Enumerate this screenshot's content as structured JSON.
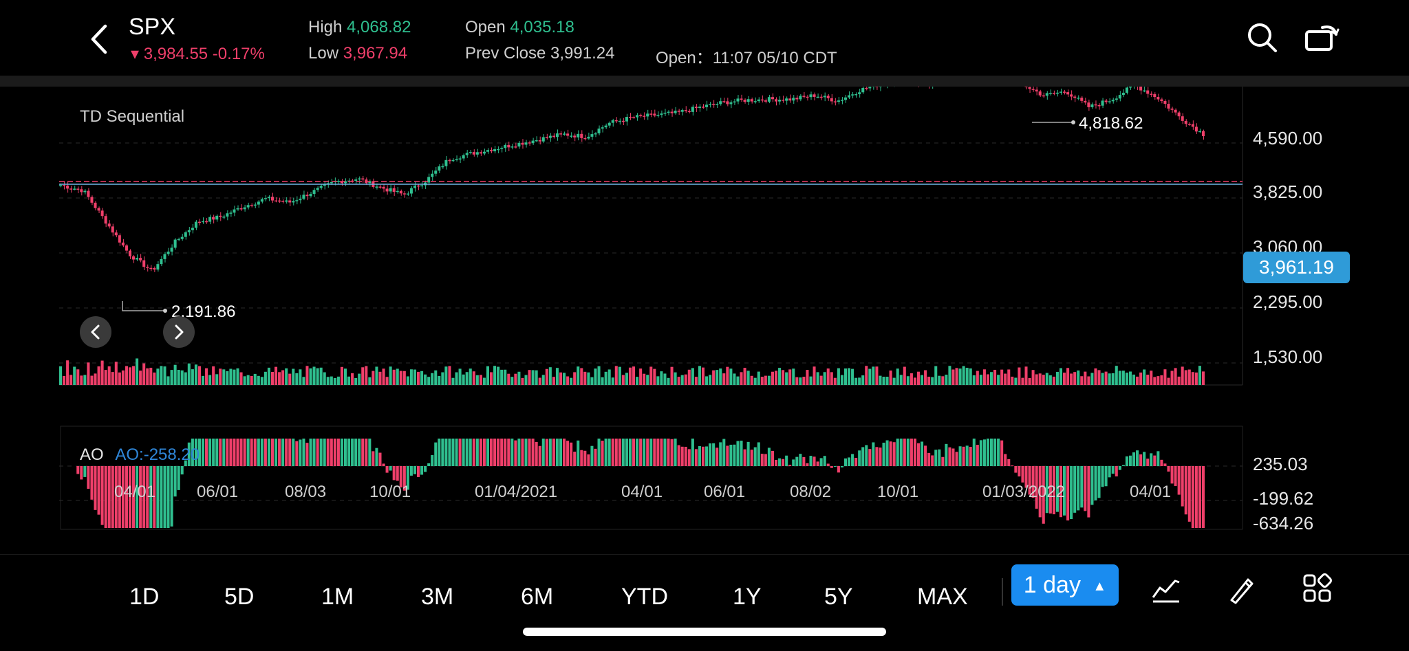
{
  "header": {
    "symbol": "SPX",
    "change": "▾ 3,984.55 -0.17%",
    "high_label": "High",
    "high_value": "4,068.82",
    "low_label": "Low",
    "low_value": "3,967.94",
    "open_label": "Open",
    "open_value": "4,035.18",
    "prev_close": "Prev Close 3,991.24",
    "session": "Open：11:07 05/10 CDT",
    "colors": {
      "up": "#2fbf8f",
      "down": "#ef3f6a",
      "accent": "#1a8cf0"
    },
    "icons": [
      "back-arrow-icon",
      "search-icon",
      "rotate-screen-icon"
    ]
  },
  "main_chart": {
    "indicator": "TD Sequential",
    "current_price": "3,961.19",
    "high_annotation": "4,818.62",
    "low_annotation": "2,191.86",
    "y_ticks": [
      "4,590.00",
      "3,825.00",
      "3,060.00",
      "2,295.00",
      "1,530.00"
    ],
    "x_ticks": [
      "04/01",
      "06/01",
      "08/03",
      "10/01",
      "01/04/2021",
      "04/01",
      "06/01",
      "08/02",
      "10/01",
      "01/03/2022",
      "04/01"
    ]
  },
  "ao_chart": {
    "name": "AO",
    "value": "AO:-258.20",
    "y_ticks": [
      "235.03",
      "-199.62",
      "-634.26"
    ]
  },
  "toolbar": {
    "timeframes": [
      "1D",
      "5D",
      "1M",
      "3M",
      "6M",
      "YTD",
      "1Y",
      "5Y",
      "MAX"
    ],
    "interval": "1 day",
    "icons": [
      "indicator-icon",
      "draw-icon",
      "layout-grid-icon"
    ]
  },
  "chart_data": {
    "type": "line",
    "title": "",
    "series": [
      {
        "values": [
          3320,
          3250,
          2850,
          2450,
          2237,
          2600,
          2860,
          2920,
          3050,
          3150,
          3100,
          3230,
          3360,
          3400,
          3290,
          3200,
          3380,
          3650,
          3720,
          3780,
          3840,
          3900,
          3960,
          3930,
          4100,
          4170,
          4200,
          4230,
          4300,
          4360,
          4390,
          4400,
          4400,
          4450,
          4380,
          4520,
          4600,
          4650,
          4590,
          4700,
          4800,
          4810,
          4600,
          4450,
          4500,
          4300,
          4400,
          4580,
          4420,
          4170,
          3960
        ]
      }
    ],
    "ylim": [
      1530,
      4818.62
    ]
  }
}
